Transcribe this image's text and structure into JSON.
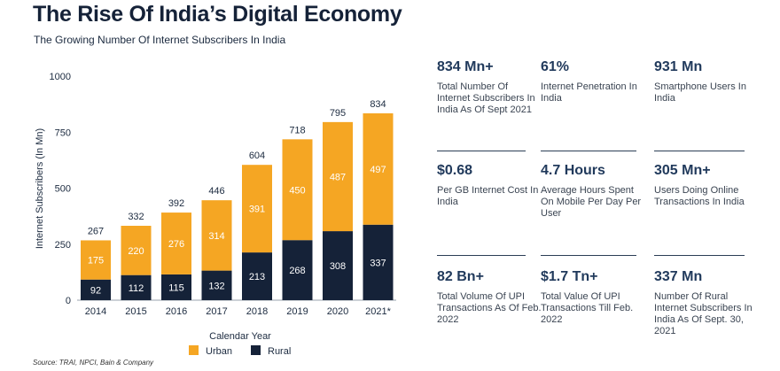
{
  "header": {
    "title": "The Rise Of India’s Digital Economy",
    "subtitle": "The Growing Number Of Internet Subscribers In India"
  },
  "source": "Source: TRAI, NPCI, Bain & Company",
  "colors": {
    "urban": "#F5A623",
    "rural": "#152238",
    "text": "#1b2a3f"
  },
  "chart_data": {
    "type": "bar",
    "stacked": true,
    "categories": [
      "2014",
      "2015",
      "2016",
      "2017",
      "2018",
      "2019",
      "2020",
      "2021*"
    ],
    "series": [
      {
        "name": "Rural",
        "values": [
          92,
          112,
          115,
          132,
          213,
          268,
          308,
          337
        ]
      },
      {
        "name": "Urban",
        "values": [
          175,
          220,
          276,
          314,
          391,
          450,
          487,
          497
        ]
      }
    ],
    "totals": [
      267,
      332,
      392,
      446,
      604,
      718,
      795,
      834
    ],
    "xlabel": "Calendar Year",
    "ylabel": "Internet Subscribers (In Mn)",
    "ylim": [
      0,
      1000
    ],
    "yticks": [
      0,
      250,
      500,
      750,
      1000
    ],
    "legend": "bottom",
    "grid": false
  },
  "stats": [
    {
      "value": "834 Mn+",
      "label": "Total Number Of Internet Subscribers In India As Of Sept 2021"
    },
    {
      "value": "61%",
      "label": "Internet Penetration In India"
    },
    {
      "value": "931 Mn",
      "label": "Smartphone Users In India"
    },
    {
      "value": "$0.68",
      "label": "Per GB Internet Cost In India"
    },
    {
      "value": "4.7 Hours",
      "label": "Average Hours Spent On Mobile Per Day Per User"
    },
    {
      "value": "305 Mn+",
      "label": "Users Doing Online Transactions In India"
    },
    {
      "value": "82 Bn+",
      "label": "Total Volume Of UPI Transactions As Of Feb. 2022"
    },
    {
      "value": "$1.7 Tn+",
      "label": "Total Value Of UPI Transactions Till Feb. 2022"
    },
    {
      "value": "337 Mn",
      "label": "Number Of Rural Internet Subscribers In India As Of Sept. 30, 2021"
    }
  ]
}
